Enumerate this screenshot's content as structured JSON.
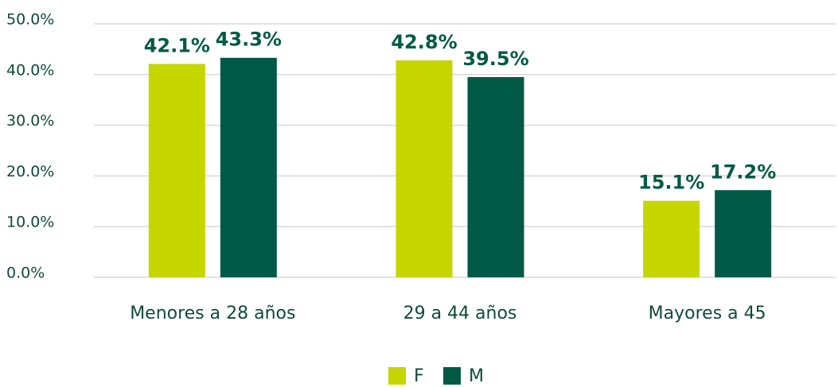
{
  "chart_data": {
    "type": "bar",
    "categories": [
      "Menores a 28 años",
      "29 a 44 años",
      "Mayores a 45"
    ],
    "series": [
      {
        "name": "F",
        "color": "#c5d600",
        "values": [
          42.1,
          42.8,
          15.1
        ],
        "value_labels": [
          "42.1%",
          "42.8%",
          "15.1%"
        ]
      },
      {
        "name": "M",
        "color": "#005a46",
        "values": [
          43.3,
          39.5,
          17.2
        ],
        "value_labels": [
          "43.3%",
          "39.5%",
          "17.2%"
        ]
      }
    ],
    "ylim": [
      0,
      50
    ],
    "yticks": [
      {
        "value": 0,
        "label": "0.0%"
      },
      {
        "value": 10,
        "label": "10.0%"
      },
      {
        "value": 20,
        "label": "20.0%"
      },
      {
        "value": 30,
        "label": "30.0%"
      },
      {
        "value": 40,
        "label": "40.0%"
      },
      {
        "value": 50,
        "label": "50.0%"
      }
    ],
    "grid": true,
    "legend": "bottom"
  }
}
